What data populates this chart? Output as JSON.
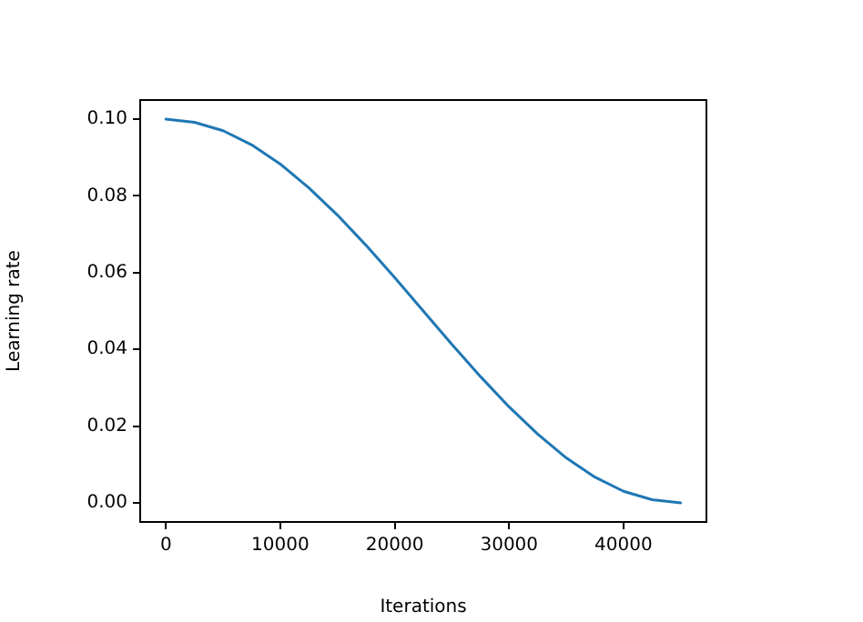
{
  "chart_data": {
    "type": "line",
    "xlabel": "Iterations",
    "ylabel": "Learning rate",
    "x": [
      0,
      2500,
      5000,
      7500,
      10000,
      12500,
      15000,
      17500,
      20000,
      22500,
      25000,
      27500,
      30000,
      32500,
      35000,
      37500,
      40000,
      42500,
      45000
    ],
    "series": [
      {
        "color": "#1f77b4",
        "values": [
          0.1,
          0.0992,
          0.097,
          0.0933,
          0.0883,
          0.0821,
          0.075,
          0.0671,
          0.0587,
          0.05,
          0.0413,
          0.0329,
          0.025,
          0.0179,
          0.0117,
          0.0067,
          0.003,
          0.0008,
          0
        ]
      }
    ],
    "xlim": [
      -2250,
      47250
    ],
    "ylim": [
      -0.005,
      0.105
    ],
    "xticks": [
      0,
      10000,
      20000,
      30000,
      40000
    ],
    "yticks": [
      {
        "value": 0,
        "label": "0.00"
      },
      {
        "value": 0.02,
        "label": "0.02"
      },
      {
        "value": 0.04,
        "label": "0.04"
      },
      {
        "value": 0.06,
        "label": "0.06"
      },
      {
        "value": 0.08,
        "label": "0.08"
      },
      {
        "value": 0.1,
        "label": "0.10"
      }
    ],
    "grid": false,
    "legend": false,
    "marker": "none",
    "line_style": "solid"
  }
}
